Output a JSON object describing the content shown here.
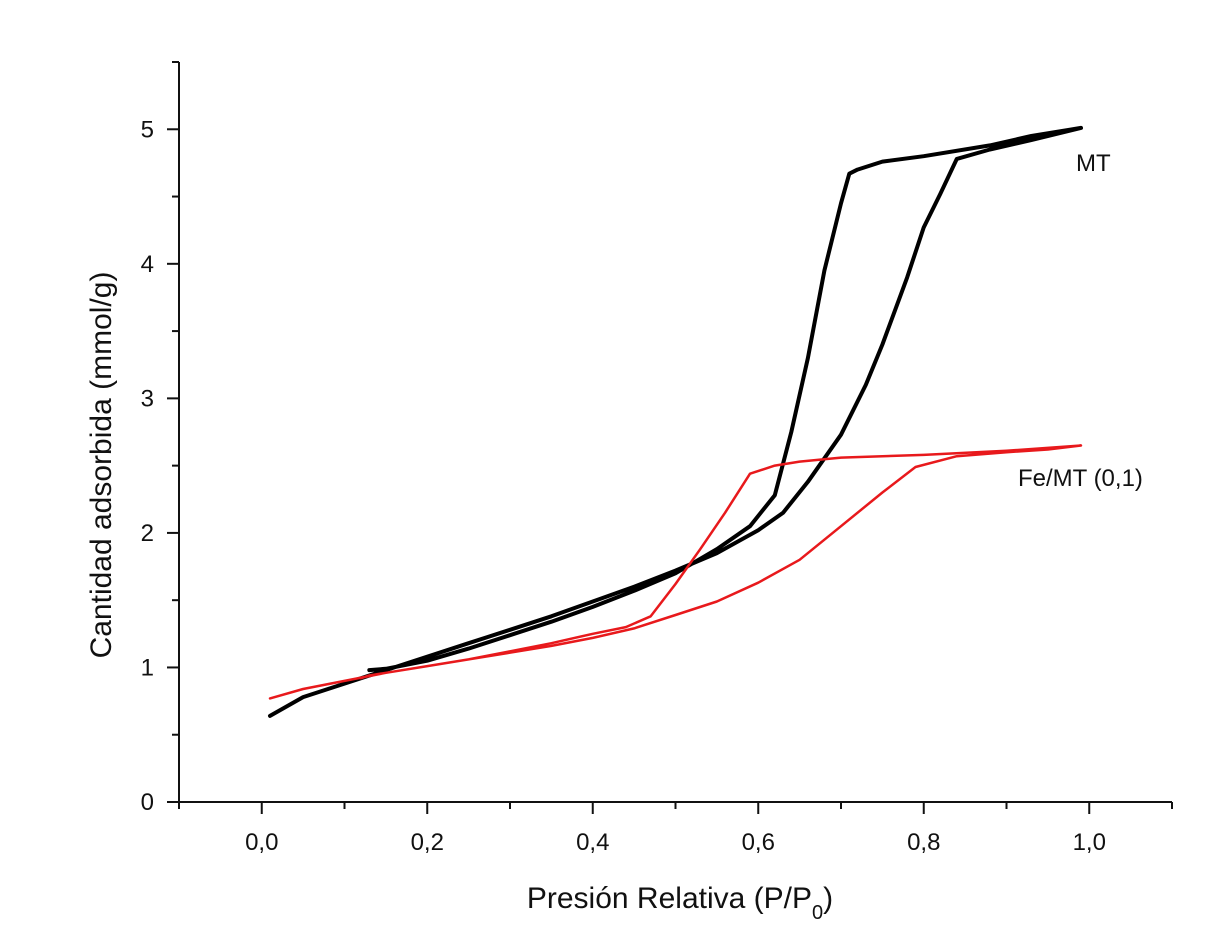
{
  "chart_data": {
    "type": "line",
    "xlabel_main": "Presión Relativa (P/P",
    "xlabel_sub": "0",
    "xlabel_close": ")",
    "ylabel": "Cantidad adsorbida (mmol/g)",
    "xlim": [
      -0.1,
      1.1
    ],
    "ylim": [
      0,
      5.5
    ],
    "x_ticks": [
      0.0,
      0.2,
      0.4,
      0.6,
      0.8,
      1.0
    ],
    "x_tick_labels": [
      "0,0",
      "0,2",
      "0,4",
      "0,6",
      "0,8",
      "1,0"
    ],
    "y_ticks": [
      0,
      1,
      2,
      3,
      4,
      5
    ],
    "y_tick_labels": [
      "0",
      "1",
      "2",
      "3",
      "4",
      "5"
    ],
    "grid": false,
    "legend": "inline labels at right",
    "series": [
      {
        "name": "MT",
        "color": "#000000",
        "points": [
          [
            0.01,
            0.64
          ],
          [
            0.05,
            0.78
          ],
          [
            0.1,
            0.88
          ],
          [
            0.15,
            0.98
          ],
          [
            0.2,
            1.08
          ],
          [
            0.25,
            1.18
          ],
          [
            0.3,
            1.28
          ],
          [
            0.35,
            1.38
          ],
          [
            0.4,
            1.49
          ],
          [
            0.45,
            1.6
          ],
          [
            0.5,
            1.72
          ],
          [
            0.55,
            1.85
          ],
          [
            0.6,
            2.02
          ],
          [
            0.63,
            2.15
          ],
          [
            0.66,
            2.38
          ],
          [
            0.7,
            2.73
          ],
          [
            0.73,
            3.1
          ],
          [
            0.75,
            3.4
          ],
          [
            0.78,
            3.9
          ],
          [
            0.8,
            4.27
          ],
          [
            0.82,
            4.52
          ],
          [
            0.84,
            4.78
          ],
          [
            0.88,
            4.85
          ],
          [
            0.93,
            4.92
          ],
          [
            0.99,
            5.01
          ],
          [
            0.93,
            4.95
          ],
          [
            0.88,
            4.88
          ],
          [
            0.8,
            4.8
          ],
          [
            0.75,
            4.76
          ],
          [
            0.72,
            4.7
          ],
          [
            0.71,
            4.67
          ],
          [
            0.7,
            4.45
          ],
          [
            0.68,
            3.95
          ],
          [
            0.66,
            3.3
          ],
          [
            0.64,
            2.75
          ],
          [
            0.62,
            2.28
          ],
          [
            0.59,
            2.05
          ],
          [
            0.55,
            1.88
          ],
          [
            0.5,
            1.7
          ],
          [
            0.45,
            1.57
          ],
          [
            0.4,
            1.45
          ],
          [
            0.35,
            1.34
          ],
          [
            0.3,
            1.24
          ],
          [
            0.25,
            1.14
          ],
          [
            0.2,
            1.05
          ],
          [
            0.15,
            0.99
          ],
          [
            0.13,
            0.98
          ]
        ]
      },
      {
        "name": "Fe/MT (0,1)",
        "color": "#e8191c",
        "points": [
          [
            0.01,
            0.77
          ],
          [
            0.05,
            0.84
          ],
          [
            0.1,
            0.9
          ],
          [
            0.15,
            0.96
          ],
          [
            0.2,
            1.01
          ],
          [
            0.25,
            1.06
          ],
          [
            0.3,
            1.11
          ],
          [
            0.35,
            1.16
          ],
          [
            0.4,
            1.22
          ],
          [
            0.45,
            1.29
          ],
          [
            0.5,
            1.39
          ],
          [
            0.55,
            1.49
          ],
          [
            0.6,
            1.63
          ],
          [
            0.65,
            1.8
          ],
          [
            0.7,
            2.05
          ],
          [
            0.75,
            2.3
          ],
          [
            0.79,
            2.49
          ],
          [
            0.84,
            2.57
          ],
          [
            0.9,
            2.6
          ],
          [
            0.95,
            2.62
          ],
          [
            0.99,
            2.65
          ],
          [
            0.9,
            2.61
          ],
          [
            0.8,
            2.58
          ],
          [
            0.7,
            2.56
          ],
          [
            0.65,
            2.53
          ],
          [
            0.62,
            2.5
          ],
          [
            0.59,
            2.44
          ],
          [
            0.56,
            2.15
          ],
          [
            0.53,
            1.88
          ],
          [
            0.5,
            1.62
          ],
          [
            0.47,
            1.38
          ],
          [
            0.44,
            1.3
          ],
          [
            0.4,
            1.25
          ],
          [
            0.35,
            1.18
          ],
          [
            0.3,
            1.12
          ],
          [
            0.25,
            1.06
          ],
          [
            0.2,
            1.01
          ],
          [
            0.15,
            0.96
          ],
          [
            0.13,
            0.94
          ],
          [
            0.12,
            0.92
          ]
        ]
      }
    ]
  }
}
